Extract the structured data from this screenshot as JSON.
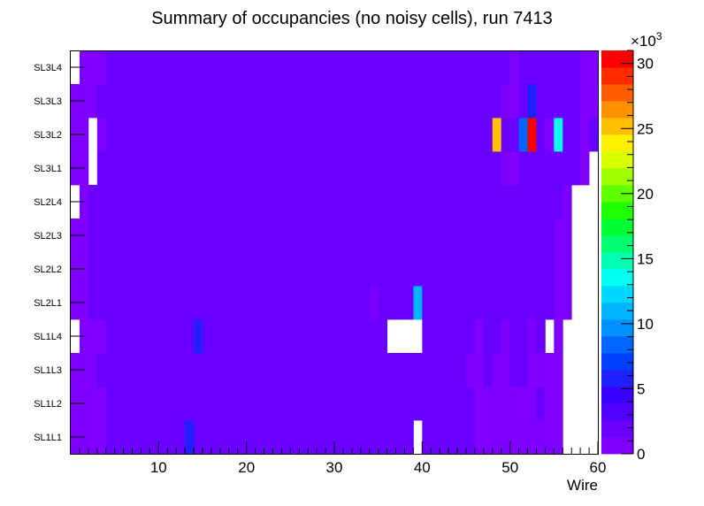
{
  "chart_data": {
    "type": "heatmap",
    "title": "Summary of occupancies (no noisy cells), run 7413",
    "xlabel": "Wire",
    "ylabel": "",
    "xlim": [
      0,
      60
    ],
    "x_ticks": [
      "10",
      "20",
      "30",
      "40",
      "50",
      "60"
    ],
    "x_tick_values": [
      10,
      20,
      30,
      40,
      50,
      60
    ],
    "y_categories": [
      "SL1L1",
      "SL1L2",
      "SL1L3",
      "SL1L4",
      "SL2L1",
      "SL2L2",
      "SL2L3",
      "SL2L4",
      "SL3L1",
      "SL3L2",
      "SL3L3",
      "SL3L4"
    ],
    "z_multiplier": "×10",
    "z_exponent": "3",
    "zlim": [
      0,
      31
    ],
    "z_ticks": [
      "0",
      "5",
      "10",
      "15",
      "20",
      "25",
      "30"
    ],
    "z_tick_values": [
      0,
      5,
      10,
      15,
      20,
      25,
      30
    ],
    "palette": [
      "#7f00ff",
      "#6a00ff",
      "#5000ff",
      "#3a00ff",
      "#2020ff",
      "#0040ff",
      "#0066ff",
      "#0090ff",
      "#00b4ff",
      "#00d8ff",
      "#00fff0",
      "#00ffb0",
      "#00ff70",
      "#00ff30",
      "#20ff00",
      "#60ff00",
      "#a0ff00",
      "#d8ff00",
      "#fff000",
      "#ffc000",
      "#ff9000",
      "#ff5c00",
      "#ff2a00",
      "#ff0000"
    ],
    "default_value": 2.5,
    "layers": [
      {
        "label": "SL1L1",
        "overrides": [
          [
            1,
            4,
            1
          ],
          [
            14,
            14,
            6
          ],
          [
            40,
            40,
            null
          ],
          [
            47,
            56,
            1
          ],
          [
            57,
            60,
            null
          ]
        ]
      },
      {
        "label": "SL1L2",
        "overrides": [
          [
            1,
            2,
            1
          ],
          [
            3,
            4,
            1
          ],
          [
            47,
            47,
            1
          ],
          [
            48,
            50,
            1
          ],
          [
            51,
            53,
            1
          ],
          [
            54,
            54,
            2.5
          ],
          [
            55,
            56,
            1
          ],
          [
            57,
            60,
            null
          ]
        ]
      },
      {
        "label": "SL1L3",
        "overrides": [
          [
            1,
            3,
            1
          ],
          [
            46,
            47,
            1
          ],
          [
            49,
            50,
            1
          ],
          [
            53,
            53,
            1
          ],
          [
            54,
            56,
            1
          ],
          [
            57,
            60,
            null
          ]
        ]
      },
      {
        "label": "SL1L4",
        "overrides": [
          [
            1,
            1,
            null
          ],
          [
            2,
            4,
            1
          ],
          [
            15,
            15,
            6
          ],
          [
            37,
            40,
            null
          ],
          [
            47,
            47,
            1
          ],
          [
            50,
            50,
            1
          ],
          [
            53,
            53,
            1
          ],
          [
            55,
            55,
            null
          ],
          [
            56,
            56,
            1
          ],
          [
            57,
            60,
            null
          ]
        ]
      },
      {
        "label": "SL2L1",
        "overrides": [
          [
            1,
            2,
            1
          ],
          [
            35,
            35,
            1
          ],
          [
            40,
            40,
            11
          ],
          [
            56,
            57,
            1
          ],
          [
            58,
            60,
            null
          ]
        ]
      },
      {
        "label": "SL2L2",
        "overrides": [
          [
            1,
            2,
            1
          ],
          [
            56,
            57,
            1
          ],
          [
            58,
            60,
            null
          ]
        ]
      },
      {
        "label": "SL2L3",
        "overrides": [
          [
            1,
            2,
            1
          ],
          [
            56,
            57,
            1
          ],
          [
            58,
            60,
            null
          ]
        ]
      },
      {
        "label": "SL2L4",
        "overrides": [
          [
            1,
            1,
            null
          ],
          [
            2,
            2,
            1
          ],
          [
            57,
            57,
            1
          ],
          [
            58,
            60,
            null
          ]
        ]
      },
      {
        "label": "SL3L1",
        "overrides": [
          [
            1,
            2,
            1
          ],
          [
            3,
            3,
            null
          ],
          [
            50,
            51,
            1
          ],
          [
            59,
            59,
            1
          ],
          [
            60,
            60,
            null
          ]
        ]
      },
      {
        "label": "SL3L2",
        "overrides": [
          [
            1,
            2,
            1
          ],
          [
            3,
            3,
            null
          ],
          [
            4,
            4,
            1
          ],
          [
            49,
            49,
            25.5
          ],
          [
            52,
            52,
            8
          ],
          [
            53,
            53,
            30.5
          ],
          [
            55,
            55,
            1
          ],
          [
            56,
            56,
            13
          ],
          [
            59,
            59,
            1
          ]
        ]
      },
      {
        "label": "SL3L3",
        "overrides": [
          [
            1,
            3,
            1
          ],
          [
            50,
            51,
            1
          ],
          [
            53,
            53,
            5.5
          ],
          [
            59,
            60,
            1
          ]
        ]
      },
      {
        "label": "SL3L4",
        "overrides": [
          [
            1,
            1,
            null
          ],
          [
            2,
            4,
            1
          ],
          [
            51,
            51,
            1
          ],
          [
            59,
            60,
            1
          ]
        ]
      }
    ]
  }
}
